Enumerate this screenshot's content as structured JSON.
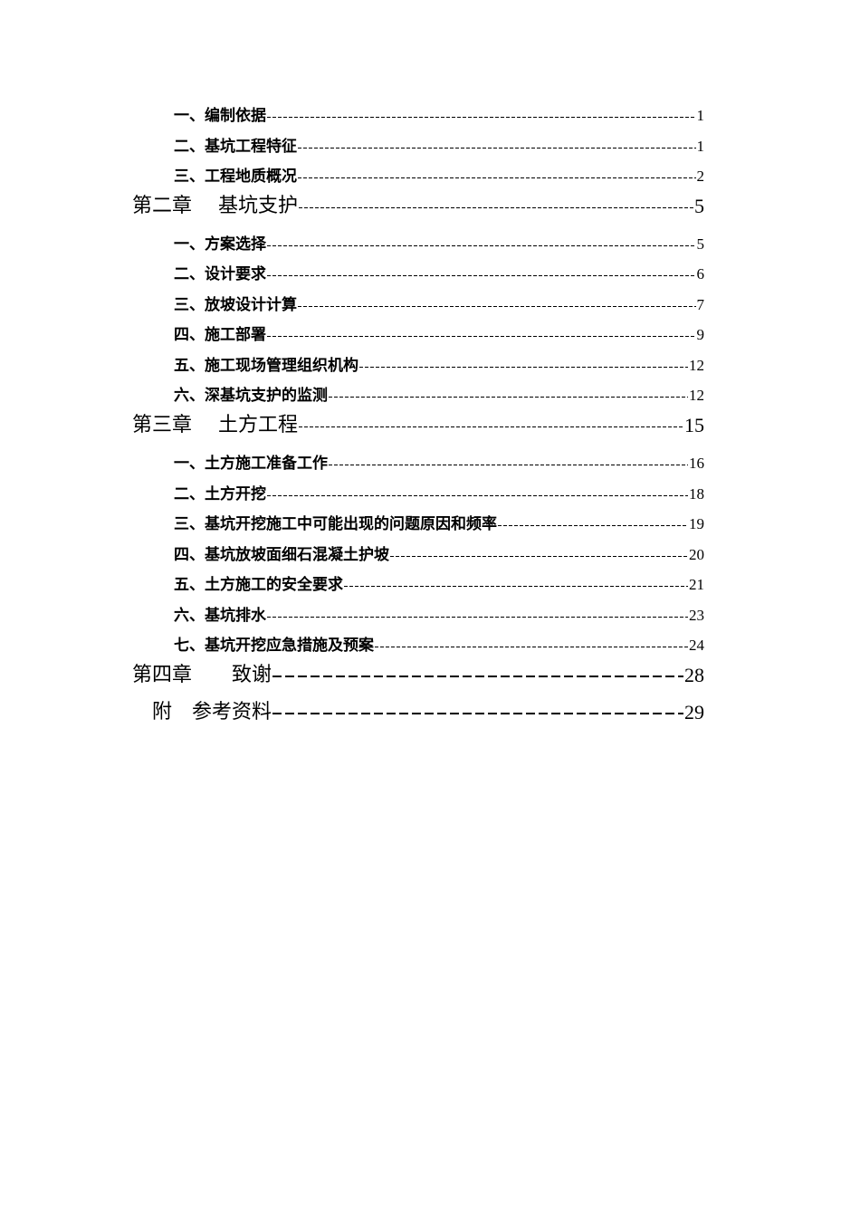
{
  "toc": [
    {
      "level": "sub",
      "label": "一、编制依据",
      "page": "1"
    },
    {
      "level": "sub",
      "label": "二、基坑工程特征",
      "page": "1"
    },
    {
      "level": "sub",
      "label": "三、工程地质概况",
      "page": " 2"
    },
    {
      "level": "chap",
      "label": "第二章　 基坑支护",
      "page": "5"
    },
    {
      "level": "sub",
      "label": "一、方案选择",
      "page": "5"
    },
    {
      "level": "sub",
      "label": "二、设计要求",
      "page": "6"
    },
    {
      "level": "sub",
      "label": "三、放坡设计计算",
      "page": "7"
    },
    {
      "level": "sub",
      "label": "四、施工部署",
      "page": "9"
    },
    {
      "level": "sub",
      "label": "五、施工现场管理组织机构",
      "page": "12"
    },
    {
      "level": "sub",
      "label": "六、深基坑支护的监测",
      "page": "12"
    },
    {
      "level": "chap",
      "label": "第三章　 土方工程",
      "page": "15"
    },
    {
      "level": "sub",
      "label": "一、土方施工准备工作",
      "page": "16"
    },
    {
      "level": "sub",
      "label": "二、土方开挖",
      "page": "18"
    },
    {
      "level": "sub",
      "label": "三、基坑开挖施工中可能出现的问题原因和频率",
      "page": "19"
    },
    {
      "level": "sub",
      "label": "四、基坑放坡面细石混凝土护坡",
      "page": "20"
    },
    {
      "level": "sub",
      "label": "五、土方施工的安全要求",
      "page": "21"
    },
    {
      "level": "sub",
      "label": "六、基坑排水",
      "page": "23"
    },
    {
      "level": "sub",
      "label": "七、基坑开挖应急措施及预案",
      "page": "24"
    },
    {
      "level": "chap",
      "label": "第四章　　致谢",
      "page": "28",
      "big": true
    },
    {
      "level": "chap",
      "label": "　附　参考资料",
      "page": "29",
      "big": true
    }
  ]
}
